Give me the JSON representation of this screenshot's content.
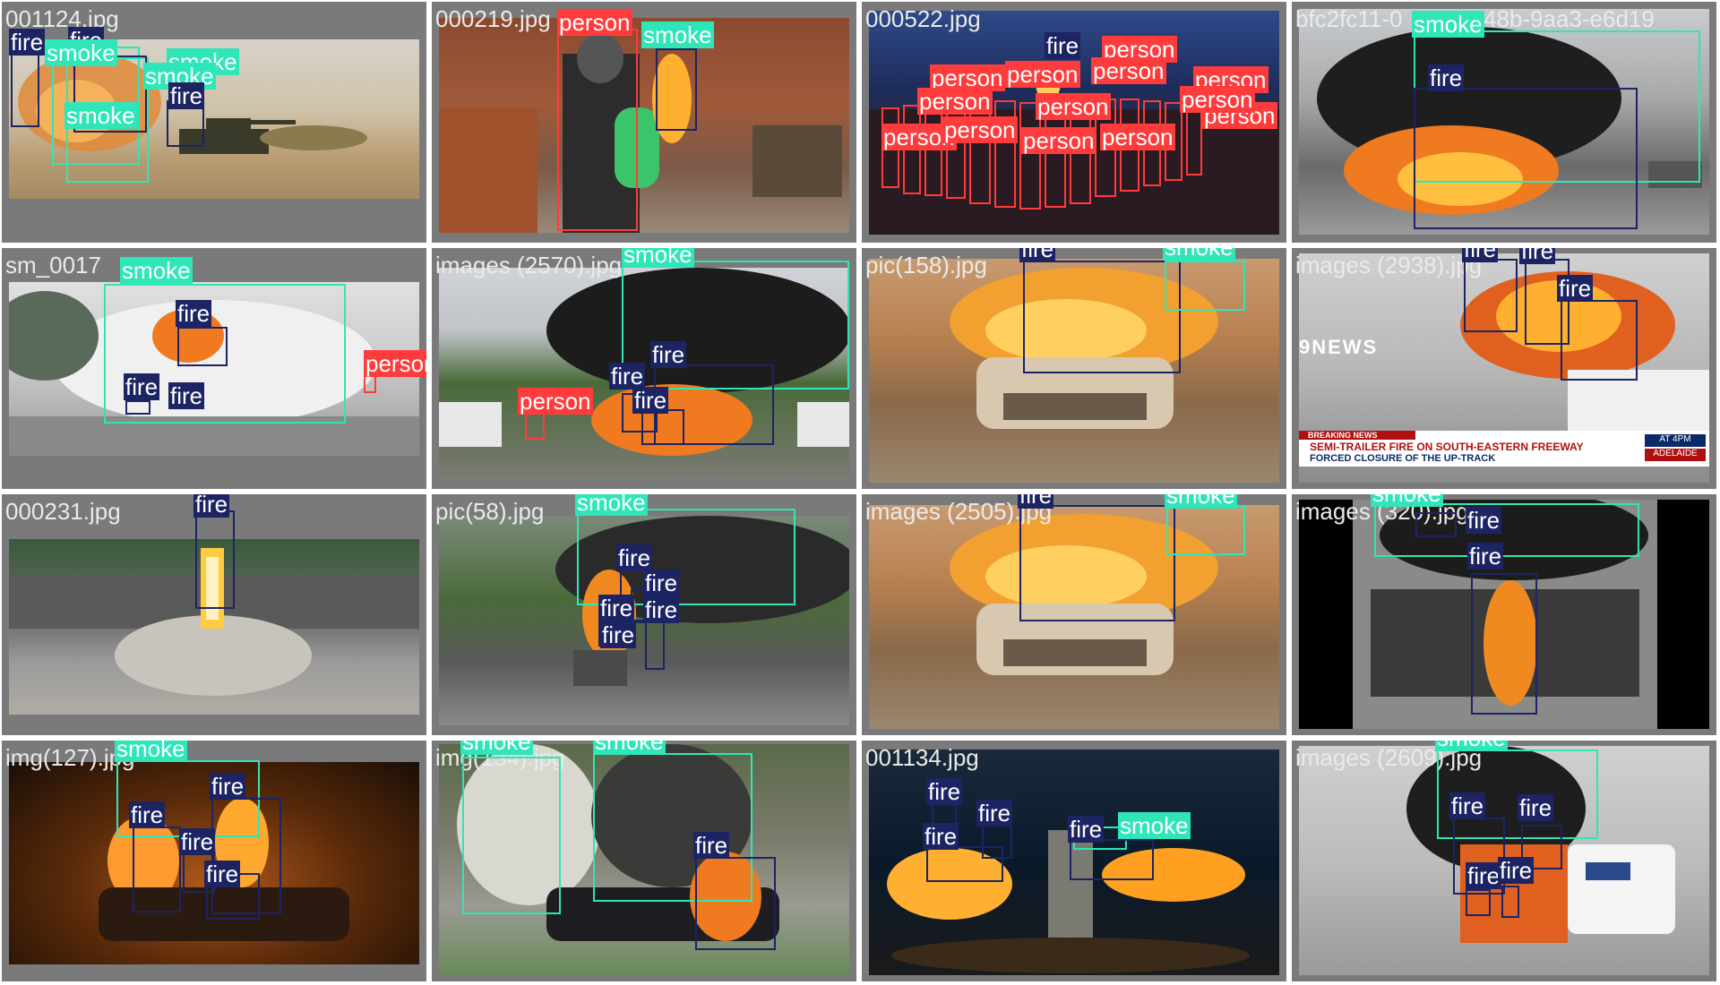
{
  "class_colors": {
    "fire": "#1c2463",
    "smoke": "#2ee6b8",
    "person": "#ff3b3b"
  },
  "tiles": [
    {
      "file": "001124.jpg",
      "labels": [
        "fire",
        "fire",
        "smoke",
        "smoke",
        "smoke",
        "smoke",
        "fire"
      ]
    },
    {
      "file": "000219.jpg",
      "labels": [
        "person",
        "smoke"
      ]
    },
    {
      "file": "000522.jpg",
      "labels": [
        "fire",
        "person",
        "person",
        "person",
        "person",
        "person",
        "person",
        "person",
        "person",
        "person",
        "person",
        "person",
        "person",
        "person"
      ]
    },
    {
      "file": "bfc2fc11-0",
      "file_suffix": "48b-9aa3-e6d19",
      "labels": [
        "smoke",
        "fire"
      ]
    },
    {
      "file": "sm_0017",
      "labels": [
        "smoke",
        "fire",
        "fire",
        "fire",
        "person"
      ]
    },
    {
      "file": "images (2570).jpg",
      "labels": [
        "smoke",
        "fire",
        "fire",
        "fire",
        "person"
      ]
    },
    {
      "file": "pic(158).jpg",
      "labels": [
        "fire",
        "smoke"
      ]
    },
    {
      "file": "images (2938).jpg",
      "labels": [
        "fire",
        "fire",
        "fire"
      ],
      "caption": "9NEWS",
      "ticker_head": "BREAKING NEWS",
      "ticker_line1": "SEMI-TRAILER FIRE ON SOUTH-EASTERN FREEWAY",
      "ticker_line2": "FORCED CLOSURE OF THE UP-TRACK",
      "ticker_time": "AT 4PM",
      "ticker_city": "ADELAIDE"
    },
    {
      "file": "000231.jpg",
      "labels": [
        "fire"
      ]
    },
    {
      "file": "pic(58).jpg",
      "labels": [
        "smoke",
        "fire",
        "fire",
        "fire",
        "fire",
        "fire"
      ]
    },
    {
      "file": "images (2505).jpg",
      "labels": [
        "fire",
        "smoke"
      ]
    },
    {
      "file": "images (320).jpg",
      "labels": [
        "smoke",
        "fire",
        "fire"
      ]
    },
    {
      "file": "img(127).jpg",
      "labels": [
        "smoke",
        "fire",
        "fire",
        "fire",
        "fire"
      ]
    },
    {
      "file": "img(134).jpg",
      "labels": [
        "smoke",
        "smoke",
        "fire"
      ]
    },
    {
      "file": "001134.jpg",
      "labels": [
        "fire",
        "fire",
        "fire",
        "smoke",
        "fire"
      ]
    },
    {
      "file": "images (2609).jpg",
      "labels": [
        "smoke",
        "fire",
        "fire",
        "fire",
        "fire"
      ]
    }
  ]
}
